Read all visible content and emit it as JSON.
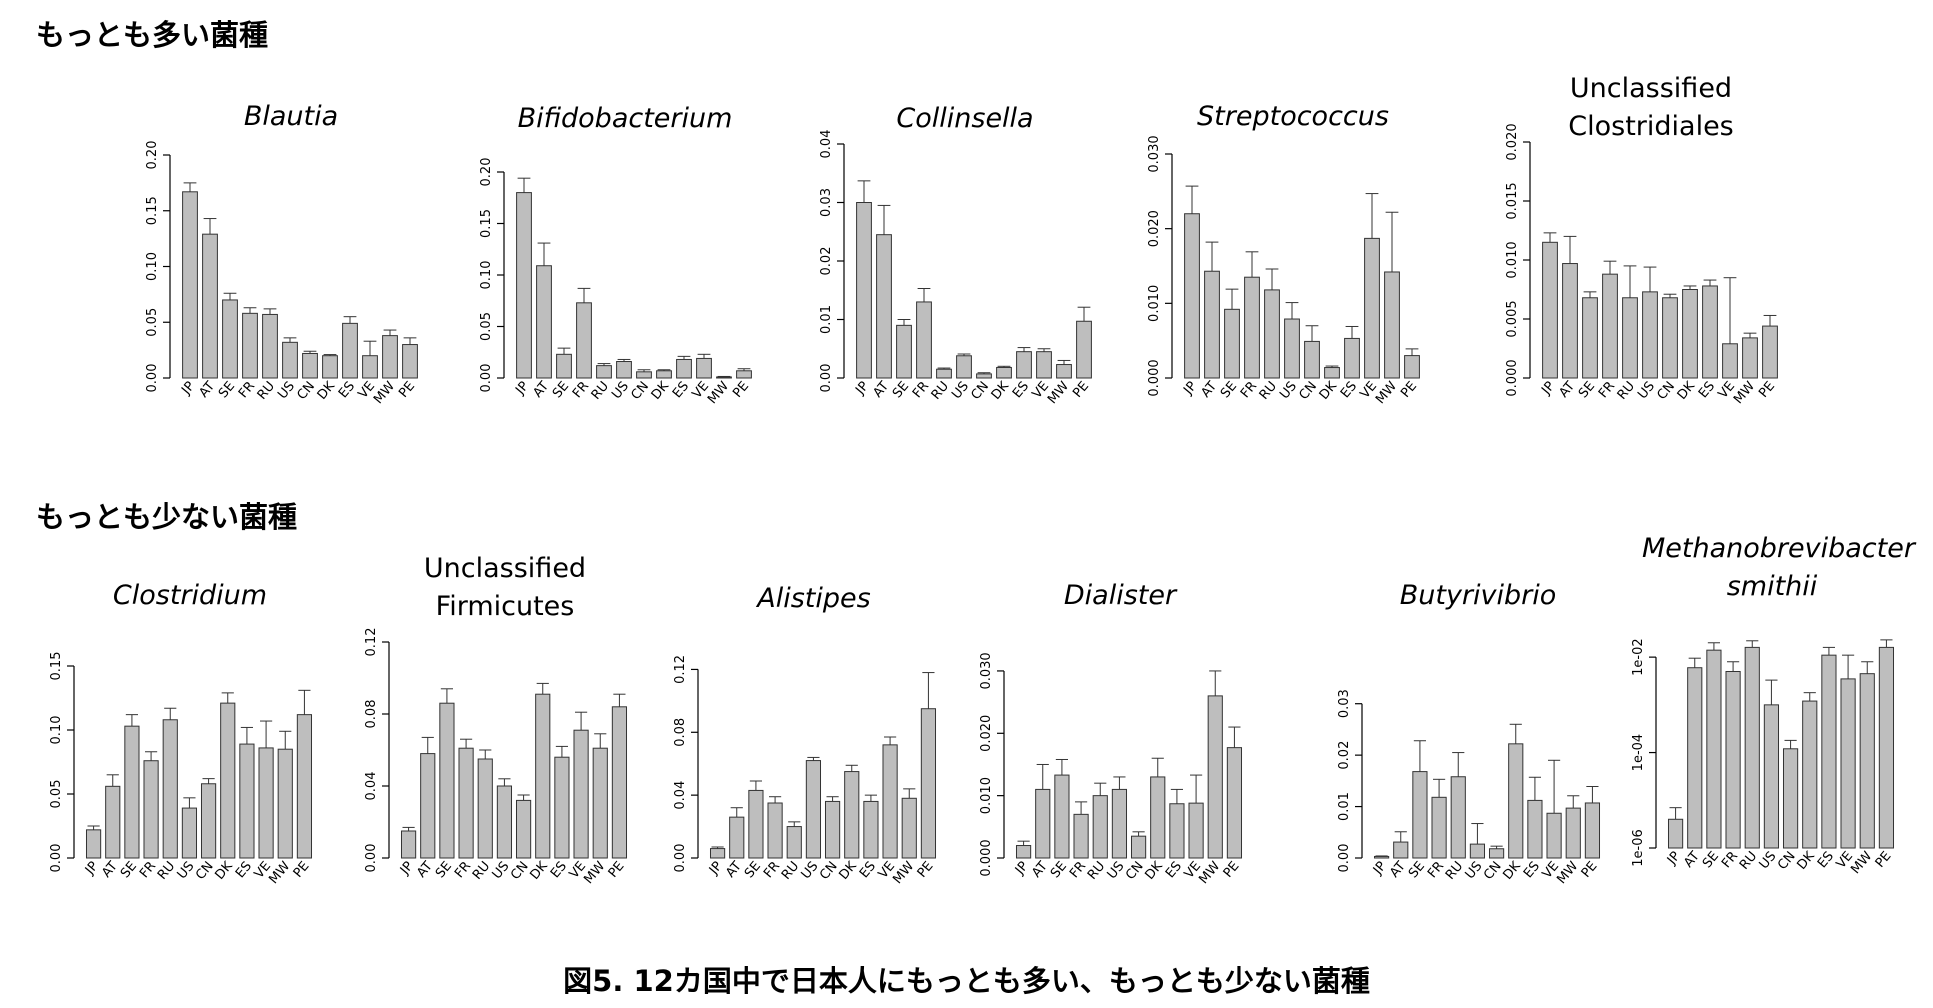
{
  "section_top": "もっとも多い菌種",
  "section_bottom": "もっとも少ない菌種",
  "caption": "図5. 12カ国中で日本人にもっとも多い、もっとも少ない菌種",
  "bar_color": "#bebebe",
  "chart_data": [
    {
      "type": "bar",
      "title": "Blautia",
      "title_italic": true,
      "categories": [
        "JP",
        "AT",
        "SE",
        "FR",
        "RU",
        "US",
        "CN",
        "DK",
        "ES",
        "VE",
        "MW",
        "PE"
      ],
      "values": [
        0.167,
        0.129,
        0.07,
        0.058,
        0.057,
        0.032,
        0.022,
        0.02,
        0.049,
        0.02,
        0.038,
        0.03
      ],
      "errors": [
        0.008,
        0.014,
        0.006,
        0.005,
        0.005,
        0.004,
        0.002,
        0.001,
        0.006,
        0.013,
        0.005,
        0.006
      ],
      "ylim": [
        0,
        0.2
      ],
      "yticks": [
        0,
        0.05,
        0.1,
        0.15,
        0.2
      ],
      "ytick_labels": [
        "0.00",
        "0.05",
        "0.10",
        "0.15",
        "0.20"
      ]
    },
    {
      "type": "bar",
      "title": "Bifidobacterium",
      "title_italic": true,
      "categories": [
        "JP",
        "AT",
        "SE",
        "FR",
        "RU",
        "US",
        "CN",
        "DK",
        "ES",
        "VE",
        "MW",
        "PE"
      ],
      "values": [
        0.18,
        0.109,
        0.023,
        0.073,
        0.012,
        0.016,
        0.006,
        0.007,
        0.018,
        0.019,
        0.001,
        0.007
      ],
      "errors": [
        0.014,
        0.022,
        0.006,
        0.014,
        0.002,
        0.002,
        0.002,
        0.001,
        0.003,
        0.004,
        0.0005,
        0.002
      ],
      "ylim": [
        0,
        0.2
      ],
      "yticks": [
        0,
        0.05,
        0.1,
        0.15,
        0.2
      ],
      "ytick_labels": [
        "0.00",
        "0.05",
        "0.10",
        "0.15",
        "0.20"
      ]
    },
    {
      "type": "bar",
      "title": "Collinsella",
      "title_italic": true,
      "categories": [
        "JP",
        "AT",
        "SE",
        "FR",
        "RU",
        "US",
        "CN",
        "DK",
        "ES",
        "VE",
        "MW",
        "PE"
      ],
      "values": [
        0.03,
        0.0245,
        0.009,
        0.013,
        0.0015,
        0.0038,
        0.0007,
        0.0018,
        0.0045,
        0.0045,
        0.0023,
        0.0097
      ],
      "errors": [
        0.0037,
        0.005,
        0.001,
        0.0023,
        0.0002,
        0.0003,
        0.0002,
        0.0002,
        0.0007,
        0.0005,
        0.0007,
        0.0024
      ],
      "ylim": [
        0,
        0.04
      ],
      "yticks": [
        0,
        0.01,
        0.02,
        0.03,
        0.04
      ],
      "ytick_labels": [
        "0.00",
        "0.01",
        "0.02",
        "0.03",
        "0.04"
      ]
    },
    {
      "type": "bar",
      "title": "Streptococcus",
      "title_italic": true,
      "categories": [
        "JP",
        "AT",
        "SE",
        "FR",
        "RU",
        "US",
        "CN",
        "DK",
        "ES",
        "VE",
        "MW",
        "PE"
      ],
      "values": [
        0.022,
        0.0143,
        0.0092,
        0.0135,
        0.0118,
        0.0079,
        0.0049,
        0.0014,
        0.0053,
        0.0187,
        0.0142,
        0.003
      ],
      "errors": [
        0.0037,
        0.0039,
        0.0027,
        0.0034,
        0.0028,
        0.0022,
        0.0021,
        0.0002,
        0.0016,
        0.006,
        0.008,
        0.0009
      ],
      "ylim": [
        0,
        0.03
      ],
      "yticks": [
        0,
        0.01,
        0.02,
        0.03
      ],
      "ytick_labels": [
        "0.000",
        "0.010",
        "0.020",
        "0.030"
      ]
    },
    {
      "type": "bar",
      "title": "Unclassified Clostridiales",
      "title_italic": false,
      "title_lines": [
        "Unclassified",
        "Clostridiales"
      ],
      "categories": [
        "JP",
        "AT",
        "SE",
        "FR",
        "RU",
        "US",
        "CN",
        "DK",
        "ES",
        "VE",
        "MW",
        "PE"
      ],
      "values": [
        0.0115,
        0.0097,
        0.0068,
        0.0088,
        0.0068,
        0.0073,
        0.0068,
        0.0075,
        0.0078,
        0.0029,
        0.0034,
        0.0044
      ],
      "errors": [
        0.0008,
        0.0023,
        0.0005,
        0.0011,
        0.0027,
        0.0021,
        0.0003,
        0.0003,
        0.0005,
        0.0056,
        0.0004,
        0.0009
      ],
      "ylim": [
        0,
        0.02
      ],
      "yticks": [
        0,
        0.005,
        0.01,
        0.015,
        0.02
      ],
      "ytick_labels": [
        "0.000",
        "0.005",
        "0.010",
        "0.015",
        "0.020"
      ]
    },
    {
      "type": "bar",
      "title": "Clostridium",
      "title_italic": true,
      "categories": [
        "JP",
        "AT",
        "SE",
        "FR",
        "RU",
        "US",
        "CN",
        "DK",
        "ES",
        "VE",
        "MW",
        "PE"
      ],
      "values": [
        0.022,
        0.056,
        0.103,
        0.076,
        0.108,
        0.039,
        0.058,
        0.121,
        0.089,
        0.086,
        0.085,
        0.112
      ],
      "errors": [
        0.003,
        0.009,
        0.009,
        0.007,
        0.009,
        0.008,
        0.004,
        0.008,
        0.013,
        0.021,
        0.014,
        0.019
      ],
      "ylim": [
        0,
        0.15
      ],
      "yticks": [
        0,
        0.05,
        0.1,
        0.15
      ],
      "ytick_labels": [
        "0.00",
        "0.05",
        "0.10",
        "0.15"
      ]
    },
    {
      "type": "bar",
      "title": "Unclassified Firmicutes",
      "title_italic": false,
      "title_lines": [
        "Unclassified",
        "Firmicutes"
      ],
      "categories": [
        "JP",
        "AT",
        "SE",
        "FR",
        "RU",
        "US",
        "CN",
        "DK",
        "ES",
        "VE",
        "MW",
        "PE"
      ],
      "values": [
        0.015,
        0.058,
        0.086,
        0.061,
        0.055,
        0.04,
        0.032,
        0.091,
        0.056,
        0.071,
        0.061,
        0.084
      ],
      "errors": [
        0.002,
        0.009,
        0.008,
        0.005,
        0.005,
        0.004,
        0.003,
        0.006,
        0.006,
        0.01,
        0.008,
        0.007
      ],
      "ylim": [
        0,
        0.12
      ],
      "yticks": [
        0,
        0.04,
        0.08,
        0.12
      ],
      "ytick_labels": [
        "0.00",
        "0.04",
        "0.08",
        "0.12"
      ]
    },
    {
      "type": "bar",
      "title": "Alistipes",
      "title_italic": true,
      "categories": [
        "JP",
        "AT",
        "SE",
        "FR",
        "RU",
        "US",
        "CN",
        "DK",
        "ES",
        "VE",
        "MW",
        "PE"
      ],
      "values": [
        0.006,
        0.026,
        0.043,
        0.035,
        0.02,
        0.062,
        0.036,
        0.055,
        0.036,
        0.072,
        0.038,
        0.095
      ],
      "errors": [
        0.001,
        0.006,
        0.006,
        0.004,
        0.003,
        0.002,
        0.003,
        0.004,
        0.004,
        0.005,
        0.006,
        0.023
      ],
      "ylim": [
        0,
        0.14
      ],
      "yticks": [
        0,
        0.04,
        0.08,
        0.12
      ],
      "ytick_labels": [
        "0.00",
        "0.04",
        "0.08",
        "0.12"
      ]
    },
    {
      "type": "bar",
      "title": "Dialister",
      "title_italic": true,
      "categories": [
        "JP",
        "AT",
        "SE",
        "FR",
        "RU",
        "US",
        "CN",
        "DK",
        "ES",
        "VE",
        "MW",
        "PE"
      ],
      "values": [
        0.002,
        0.011,
        0.0133,
        0.007,
        0.01,
        0.011,
        0.0035,
        0.013,
        0.0087,
        0.0088,
        0.026,
        0.0177
      ],
      "errors": [
        0.0007,
        0.004,
        0.0025,
        0.002,
        0.002,
        0.002,
        0.0007,
        0.003,
        0.0023,
        0.0045,
        0.004,
        0.0033
      ],
      "ylim": [
        0,
        0.034
      ],
      "yticks": [
        0,
        0.01,
        0.02,
        0.03
      ],
      "ytick_labels": [
        "0.000",
        "0.010",
        "0.020",
        "0.030"
      ]
    },
    {
      "type": "bar",
      "title": "Butyrivibrio",
      "title_italic": true,
      "categories": [
        "JP",
        "AT",
        "SE",
        "FR",
        "RU",
        "US",
        "CN",
        "DK",
        "ES",
        "VE",
        "MW",
        "PE"
      ],
      "values": [
        0.0003,
        0.0031,
        0.0168,
        0.0118,
        0.0158,
        0.0027,
        0.0018,
        0.0222,
        0.0112,
        0.0087,
        0.0097,
        0.0107
      ],
      "errors": [
        0.0001,
        0.002,
        0.006,
        0.0035,
        0.0047,
        0.004,
        0.0005,
        0.0038,
        0.0045,
        0.0103,
        0.0024,
        0.0032
      ],
      "ylim": [
        0,
        0.035
      ],
      "yticks": [
        0,
        0.01,
        0.02,
        0.03
      ],
      "ytick_labels": [
        "0.00",
        "0.01",
        "0.02",
        "0.03"
      ]
    },
    {
      "type": "bar",
      "title": "Methanobrevibacter smithii",
      "title_italic": true,
      "title_lines": [
        "Methanobrevibacter",
        "smithii"
      ],
      "log_scale": true,
      "categories": [
        "JP",
        "AT",
        "SE",
        "FR",
        "RU",
        "US",
        "CN",
        "DK",
        "ES",
        "VE",
        "MW",
        "PE"
      ],
      "values": [
        4e-06,
        0.006,
        0.014,
        0.005,
        0.016,
        0.001,
        0.00012,
        0.0012,
        0.011,
        0.0035,
        0.0045,
        0.016
      ],
      "errors_upper": [
        7e-06,
        0.0095,
        0.02,
        0.008,
        0.022,
        0.0033,
        0.00018,
        0.0018,
        0.016,
        0.011,
        0.008,
        0.023
      ],
      "ylim": [
        1e-06,
        0.06
      ],
      "yticks": [
        1e-06,
        0.0001,
        0.01
      ],
      "ytick_labels": [
        "1e-06",
        "1e-04",
        "1e-02"
      ]
    }
  ]
}
